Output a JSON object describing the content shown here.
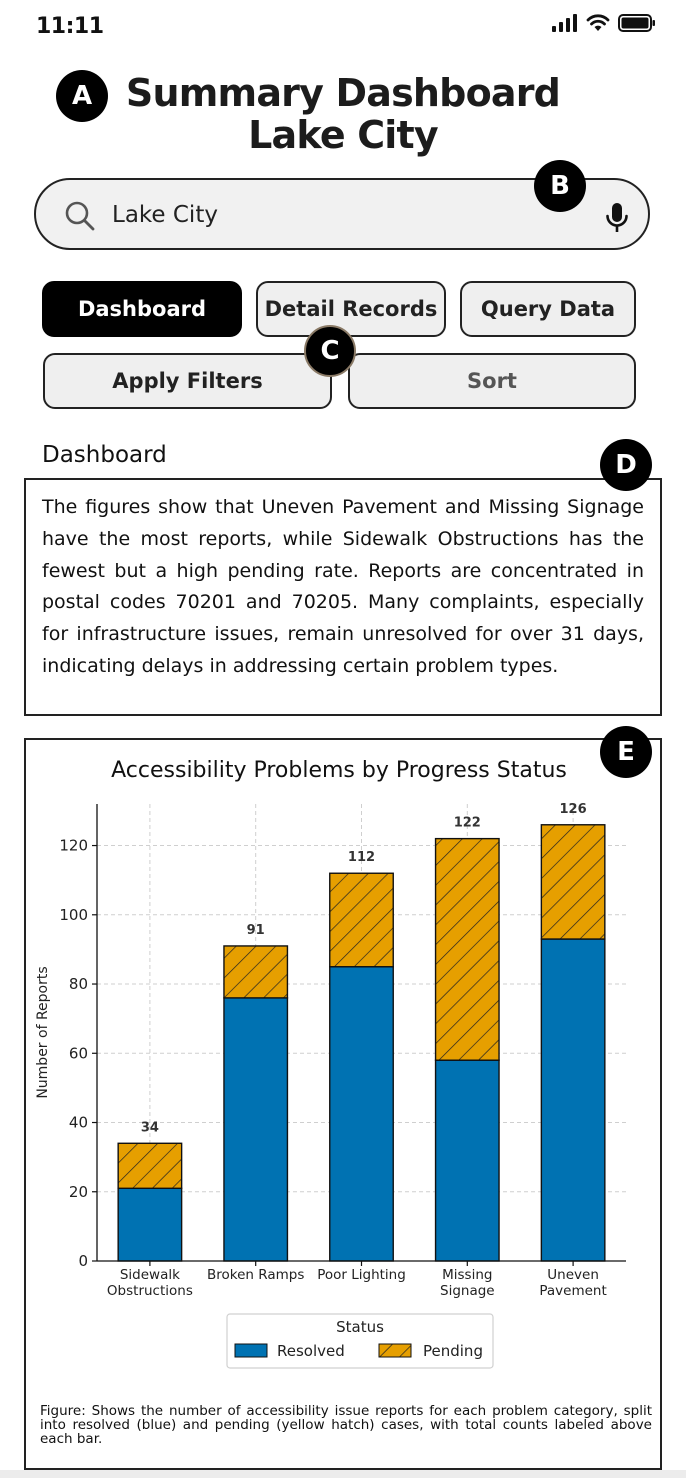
{
  "status_bar": {
    "time": "11:11"
  },
  "header": {
    "title_line1": "Summary Dashboard",
    "title_line2": "Lake City"
  },
  "markers": {
    "a": "A",
    "b": "B",
    "c": "C",
    "d": "D",
    "e": "E"
  },
  "search": {
    "value": "Lake City"
  },
  "tabs": [
    {
      "label": "Dashboard",
      "active": true
    },
    {
      "label": "Detail Records",
      "active": false
    },
    {
      "label": "Query Data",
      "active": false
    }
  ],
  "actions": {
    "apply_filters": "Apply Filters",
    "sort": "Sort"
  },
  "section": {
    "title": "Dashboard",
    "description": "The figures show that Uneven Pavement and Missing Signage have the most reports, while Sidewalk Obstructions has the fewest but a high pending rate. Reports are concentrated in postal codes 70201 and 70205. Many complaints, especially for infrastructure issues, remain unresolved for over 31 days, indicating delays in addressing certain problem types."
  },
  "chart_data": {
    "type": "bar",
    "stacked": true,
    "title": "Accessibility Problems by Progress Status",
    "xlabel": "",
    "ylabel": "Number of Reports",
    "ylim": [
      0,
      132
    ],
    "yticks": [
      0,
      20,
      40,
      60,
      80,
      100,
      120
    ],
    "grid": true,
    "categories": [
      [
        "Sidewalk",
        "Obstructions"
      ],
      [
        "Broken Ramps"
      ],
      [
        "Poor Lighting"
      ],
      [
        "Missing",
        "Signage"
      ],
      [
        "Uneven",
        "Pavement"
      ]
    ],
    "series": [
      {
        "name": "Resolved",
        "values": [
          21,
          76,
          85,
          58,
          93
        ],
        "color": "#0072b2",
        "pattern": "solid"
      },
      {
        "name": "Pending",
        "values": [
          13,
          15,
          27,
          64,
          33
        ],
        "color": "#e69f00",
        "pattern": "hatch"
      }
    ],
    "totals": [
      34,
      91,
      112,
      122,
      126
    ],
    "legend": {
      "title": "Status",
      "placement": "bottom-center"
    }
  },
  "caption": "Figure: Shows the number of accessibility issue reports for each problem category, split into resolved (blue) and pending (yellow hatch) cases, with total counts labeled above each bar."
}
